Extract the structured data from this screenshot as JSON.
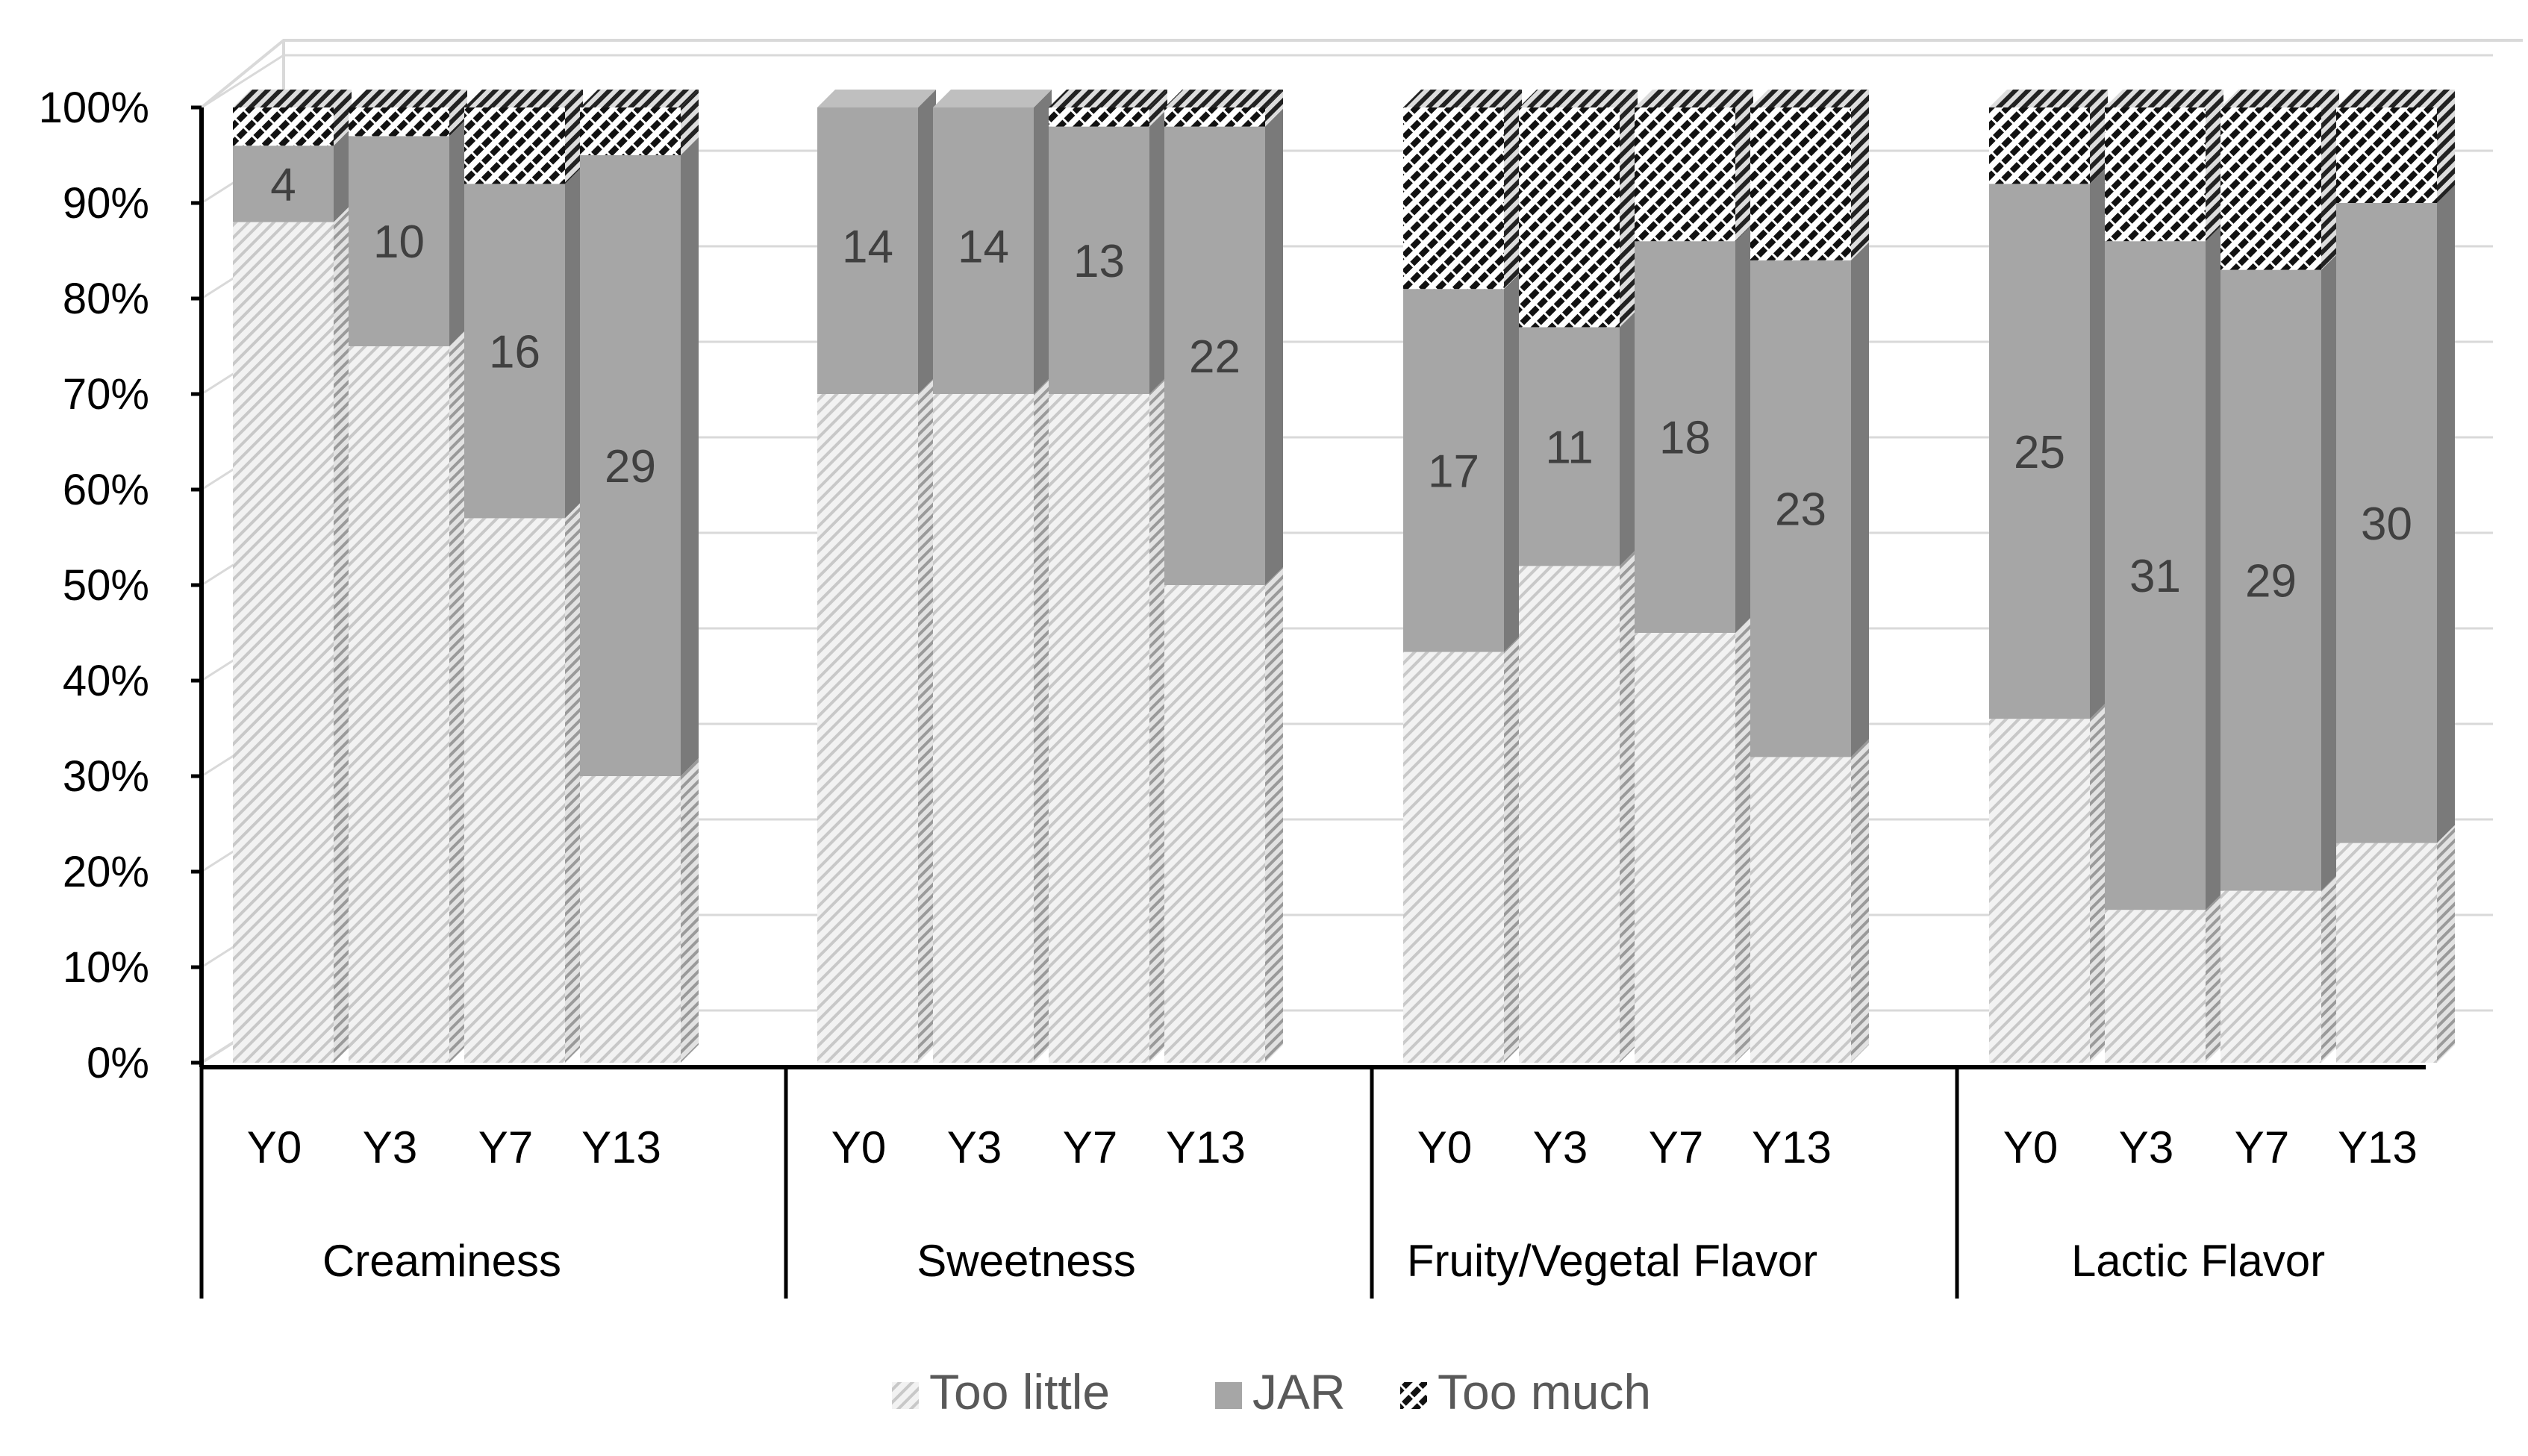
{
  "chart_data": {
    "type": "bar",
    "stacked": "percent",
    "style": "3d",
    "title": "",
    "xlabel": "",
    "ylabel": "",
    "ylim": [
      0,
      100
    ],
    "yticks": [
      "0%",
      "10%",
      "20%",
      "30%",
      "40%",
      "50%",
      "60%",
      "70%",
      "80%",
      "90%",
      "100%"
    ],
    "groups": [
      {
        "name": "Creaminess",
        "bars": [
          {
            "label": "Y0",
            "too_little": 88,
            "jar": 8,
            "too_much": 4,
            "jar_label": "4"
          },
          {
            "label": "Y3",
            "too_little": 75,
            "jar": 22,
            "too_much": 3,
            "jar_label": "10"
          },
          {
            "label": "Y7",
            "too_little": 57,
            "jar": 35,
            "too_much": 8,
            "jar_label": "16"
          },
          {
            "label": "Y13",
            "too_little": 30,
            "jar": 65,
            "too_much": 5,
            "jar_label": "29"
          }
        ]
      },
      {
        "name": "Sweetness",
        "bars": [
          {
            "label": "Y0",
            "too_little": 70,
            "jar": 31,
            "too_much": 0,
            "jar_label": "14"
          },
          {
            "label": "Y3",
            "too_little": 70,
            "jar": 31,
            "too_much": 0,
            "jar_label": "14"
          },
          {
            "label": "Y7",
            "too_little": 70,
            "jar": 28,
            "too_much": 2,
            "jar_label": "13"
          },
          {
            "label": "Y13",
            "too_little": 50,
            "jar": 48,
            "too_much": 2,
            "jar_label": "22"
          }
        ]
      },
      {
        "name": "Fruity/Vegetal Flavor",
        "bars": [
          {
            "label": "Y0",
            "too_little": 43,
            "jar": 38,
            "too_much": 19,
            "jar_label": "17"
          },
          {
            "label": "Y3",
            "too_little": 52,
            "jar": 25,
            "too_much": 23,
            "jar_label": "11"
          },
          {
            "label": "Y7",
            "too_little": 45,
            "jar": 41,
            "too_much": 14,
            "jar_label": "18"
          },
          {
            "label": "Y13",
            "too_little": 32,
            "jar": 52,
            "too_much": 16,
            "jar_label": "23"
          }
        ]
      },
      {
        "name": "Lactic Flavor",
        "bars": [
          {
            "label": "Y0",
            "too_little": 36,
            "jar": 56,
            "too_much": 8,
            "jar_label": "25"
          },
          {
            "label": "Y3",
            "too_little": 16,
            "jar": 70,
            "too_much": 14,
            "jar_label": "31"
          },
          {
            "label": "Y7",
            "too_little": 18,
            "jar": 65,
            "too_much": 17,
            "jar_label": "29"
          },
          {
            "label": "Y13",
            "too_little": 23,
            "jar": 67,
            "too_much": 10,
            "jar_label": "30"
          }
        ]
      }
    ],
    "series": [
      {
        "key": "too_little",
        "name": "Too little"
      },
      {
        "key": "jar",
        "name": "JAR"
      },
      {
        "key": "too_much",
        "name": "Too much"
      }
    ],
    "legend": "bottom-center",
    "grid": true,
    "colors": {
      "too_little_bg": "#f2f2f2",
      "too_little_hatch": "#c8c8c8",
      "jar_front": "#a6a6a6",
      "jar_side": "#7a7a7a",
      "jar_top": "#bfbfbf",
      "too_much_bg": "#ffffff",
      "too_much_hatch": "#111111",
      "gridline": "#d9d9d9",
      "axis": "#000000",
      "text": "#404040",
      "side_fill": "#777777"
    }
  }
}
